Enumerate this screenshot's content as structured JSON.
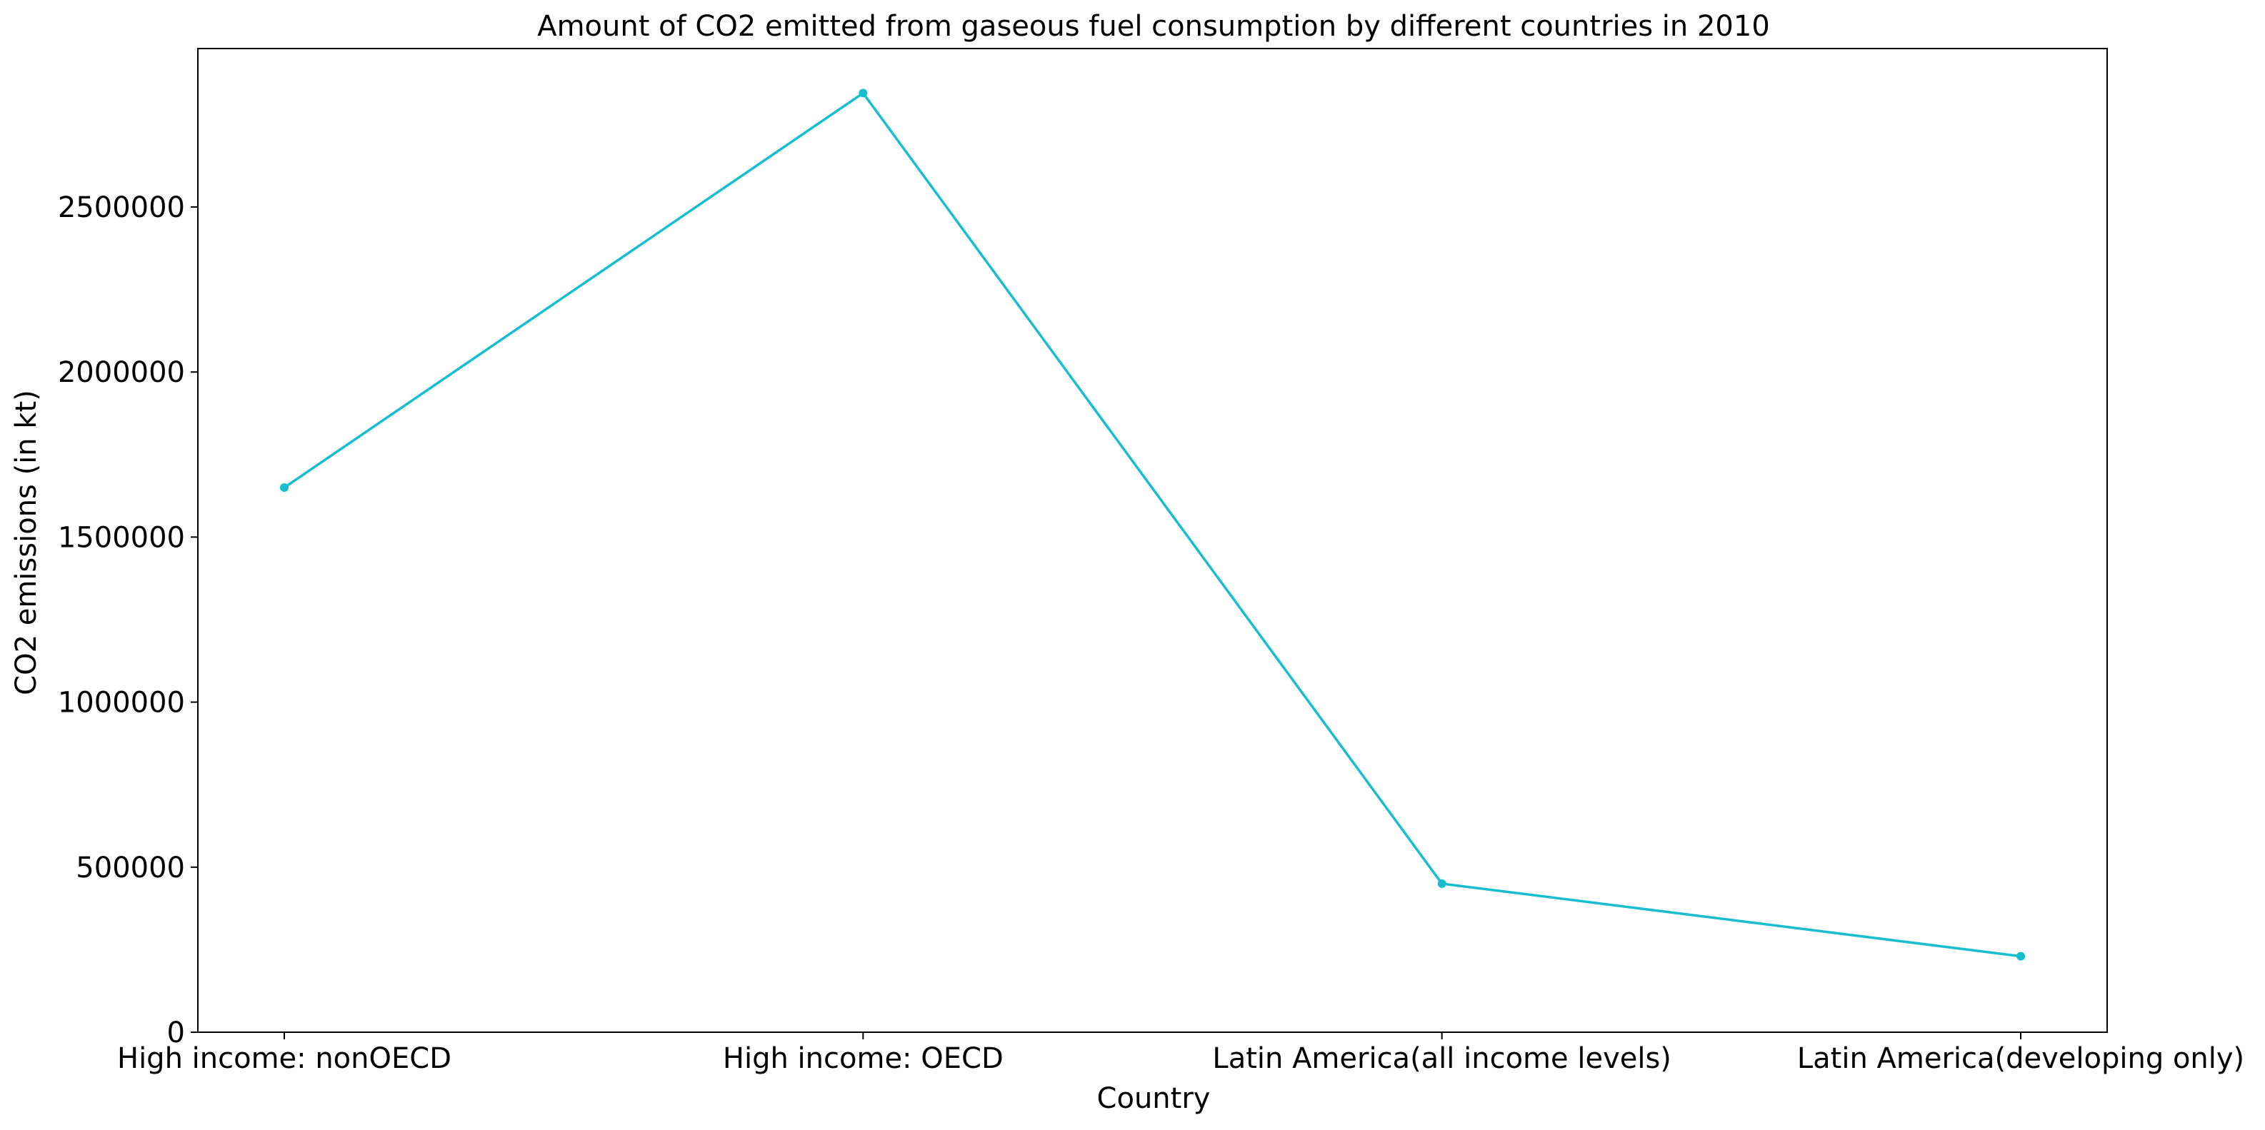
{
  "chart_data": {
    "type": "line",
    "title": "Amount of CO2 emitted from gaseous fuel consumption by different countries in 2010",
    "xlabel": "Country",
    "ylabel": "CO2 emissions (in kt)",
    "categories": [
      "High income: nonOECD",
      "High income: OECD",
      "Latin America(all income levels)",
      "Latin America(developing only)"
    ],
    "series": [
      {
        "values": [
          1650000,
          2845000,
          450000,
          230000
        ],
        "color": "#17becf",
        "marker": "circle"
      }
    ],
    "ylim": [
      0,
      2980000
    ],
    "yticks": [
      0,
      500000,
      1000000,
      1500000,
      2000000,
      2500000
    ],
    "ytick_labels": [
      "0",
      "500000",
      "1000000",
      "1500000",
      "2000000",
      "2500000"
    ],
    "grid": false,
    "legend": "none"
  }
}
